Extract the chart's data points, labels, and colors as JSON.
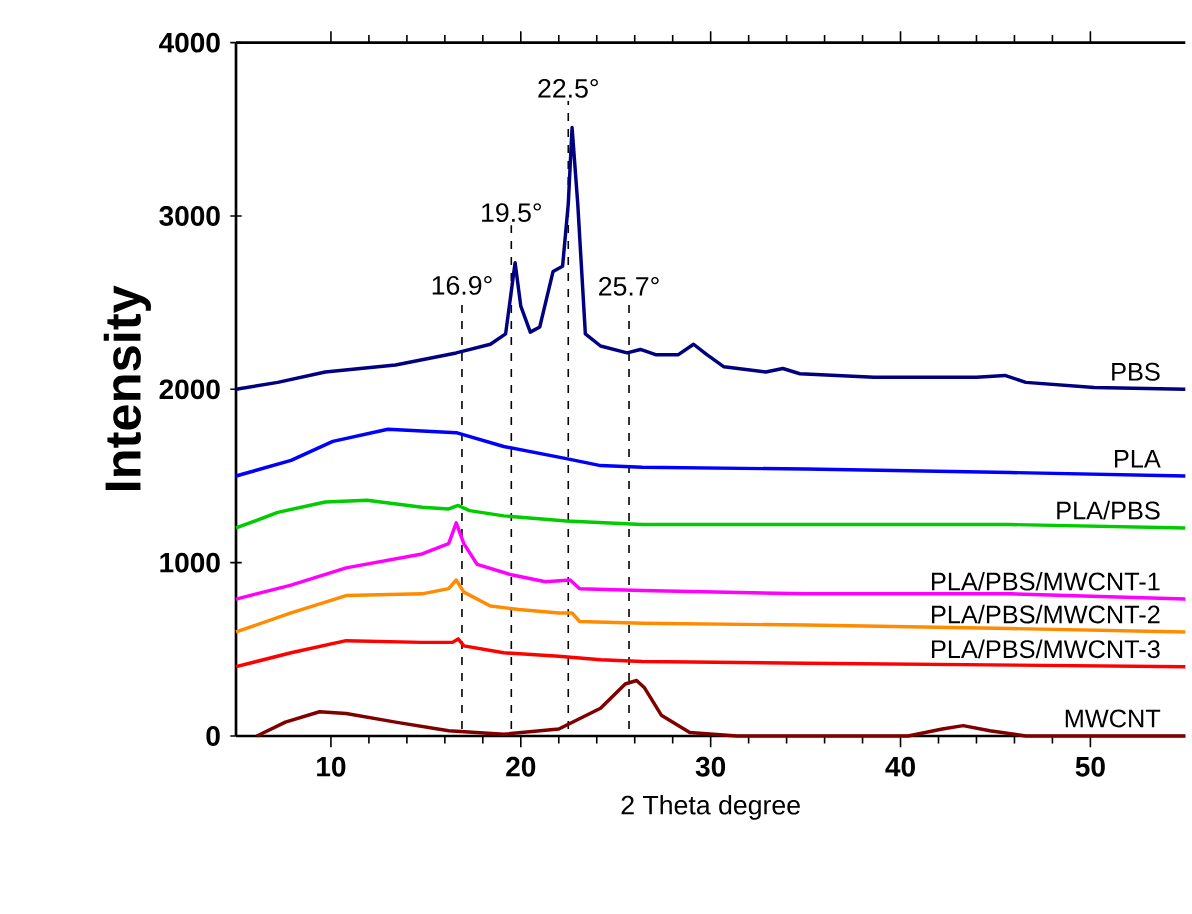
{
  "chart_data": {
    "type": "line",
    "xlabel": "2 Theta degree",
    "ylabel": "Intensity",
    "xlim": [
      5,
      55
    ],
    "ylim": [
      0,
      4000
    ],
    "xticks": [
      10,
      20,
      30,
      40,
      50
    ],
    "yticks": [
      0,
      1000,
      2000,
      3000,
      4000
    ],
    "legend": false,
    "grid": false,
    "marker": "none",
    "line_style": "solid",
    "series": [
      {
        "name": "PBS",
        "color": "#000080",
        "x": [
          5,
          7.2,
          9.7,
          13.4,
          16.6,
          18.4,
          19.2,
          19.7,
          20.0,
          20.5,
          21.0,
          21.7,
          22.2,
          22.5,
          22.7,
          23.0,
          23.4,
          24.2,
          25.6,
          26.3,
          27.1,
          28.3,
          29.1,
          29.8,
          30.7,
          32.9,
          33.8,
          34.7,
          38.6,
          44.0,
          45.5,
          46.6,
          50.2,
          55
        ],
        "values": [
          2000,
          2040,
          2100,
          2140,
          2210,
          2260,
          2320,
          2730,
          2480,
          2330,
          2360,
          2680,
          2710,
          3070,
          3510,
          3070,
          2320,
          2250,
          2210,
          2230,
          2200,
          2200,
          2260,
          2200,
          2130,
          2100,
          2120,
          2090,
          2070,
          2070,
          2080,
          2040,
          2010,
          2000
        ]
      },
      {
        "name": "PLA",
        "color": "#0000ff",
        "x": [
          5,
          7.9,
          10.1,
          13.0,
          16.6,
          19.1,
          22.4,
          24.2,
          26.4,
          35.0,
          45.8,
          55
        ],
        "values": [
          1500,
          1590,
          1700,
          1770,
          1750,
          1670,
          1600,
          1560,
          1550,
          1540,
          1520,
          1500
        ]
      },
      {
        "name": "PLA/PBS",
        "color": "#00cc00",
        "x": [
          5,
          7.2,
          9.7,
          11.9,
          14.8,
          16.2,
          16.7,
          17.3,
          19.1,
          22.4,
          26.4,
          35.0,
          45.8,
          55
        ],
        "values": [
          1200,
          1290,
          1350,
          1360,
          1320,
          1310,
          1330,
          1300,
          1270,
          1240,
          1220,
          1220,
          1220,
          1200
        ]
      },
      {
        "name": "PLA/PBS/MWCNT-1",
        "color": "#ff00ff",
        "x": [
          5,
          7.9,
          10.8,
          14.8,
          16.2,
          16.6,
          17.0,
          17.7,
          19.5,
          21.3,
          22.6,
          23.1,
          26.4,
          35.0,
          45.8,
          55
        ],
        "values": [
          790,
          870,
          970,
          1050,
          1110,
          1230,
          1110,
          990,
          930,
          890,
          900,
          850,
          840,
          820,
          820,
          790
        ]
      },
      {
        "name": "PLA/PBS/MWCNT-2",
        "color": "#ff8c00",
        "x": [
          5,
          7.9,
          10.8,
          14.8,
          16.2,
          16.6,
          17.0,
          18.4,
          19.9,
          22.0,
          22.7,
          23.1,
          26.4,
          35.0,
          45.8,
          55
        ],
        "values": [
          600,
          710,
          810,
          820,
          850,
          900,
          830,
          750,
          730,
          710,
          710,
          660,
          650,
          640,
          620,
          600
        ]
      },
      {
        "name": "PLA/PBS/MWCNT-3",
        "color": "#ff0000",
        "x": [
          5,
          7.9,
          10.8,
          14.8,
          16.4,
          16.7,
          17.0,
          19.1,
          22.0,
          24.2,
          26.4,
          35.0,
          55
        ],
        "values": [
          400,
          480,
          550,
          540,
          540,
          560,
          520,
          480,
          460,
          440,
          430,
          420,
          400
        ]
      },
      {
        "name": "MWCNT",
        "color": "#800000",
        "x": [
          6.1,
          7.6,
          9.4,
          10.8,
          13.4,
          16.2,
          19.1,
          22.0,
          24.2,
          25.5,
          26.1,
          26.5,
          27.4,
          28.9,
          31.4,
          40.4,
          42.2,
          43.3,
          44.7,
          46.6,
          55
        ],
        "values": [
          0,
          80,
          140,
          130,
          80,
          30,
          10,
          40,
          160,
          300,
          320,
          280,
          120,
          20,
          0,
          0,
          40,
          60,
          30,
          0,
          0
        ]
      }
    ],
    "ref_lines": [
      {
        "axis": "x",
        "value": 16.9,
        "label": "16.9°",
        "line_style": "dashed"
      },
      {
        "axis": "x",
        "value": 19.5,
        "label": "19.5°",
        "line_style": "dashed"
      },
      {
        "axis": "x",
        "value": 22.5,
        "label": "22.5°",
        "line_style": "dashed"
      },
      {
        "axis": "x",
        "value": 25.7,
        "label": "25.7°",
        "line_style": "dashed"
      }
    ]
  }
}
